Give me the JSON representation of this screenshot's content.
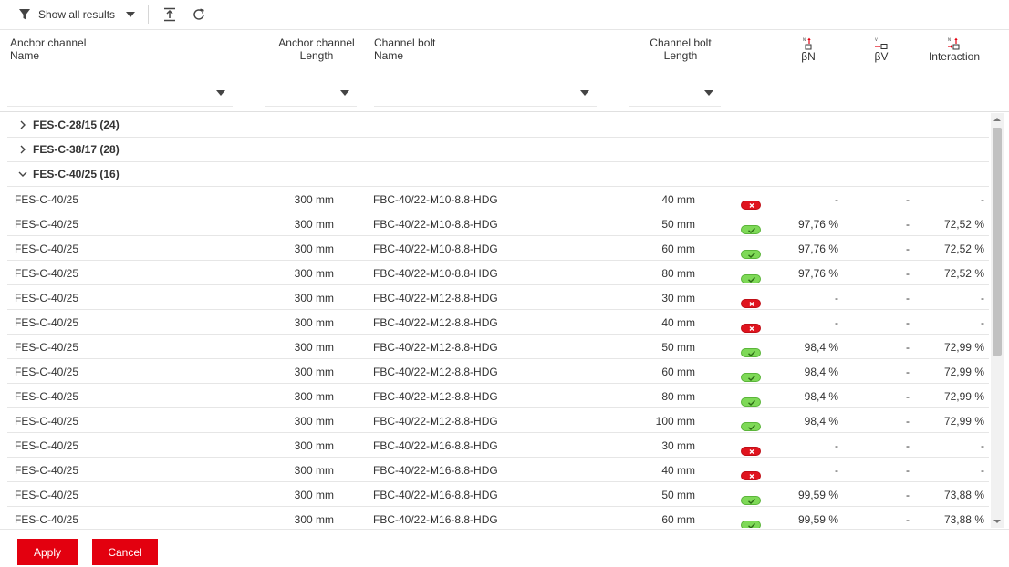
{
  "toolbar": {
    "filter_label": "Show all results",
    "icons": [
      "filter-icon",
      "chevron-down-icon",
      "collapse-up-icon",
      "refresh-icon"
    ]
  },
  "header": {
    "anchor_name": [
      "Anchor channel",
      "Name"
    ],
    "anchor_length": [
      "Anchor channel",
      "Length"
    ],
    "bolt_name": [
      "Channel bolt",
      "Name"
    ],
    "bolt_length": [
      "Channel bolt",
      "Length"
    ],
    "beta_n": "βN",
    "beta_v": "βV",
    "interaction": "Interaction"
  },
  "groups": [
    {
      "label": "FES-C-28/15 (24)",
      "expanded": false
    },
    {
      "label": "FES-C-38/17 (28)",
      "expanded": false
    },
    {
      "label": "FES-C-40/25 (16)",
      "expanded": true
    }
  ],
  "rows": [
    {
      "name": "FES-C-40/25",
      "length": "300 mm",
      "bolt": "FBC-40/22-M10-8.8-HDG",
      "blen": "40 mm",
      "status": "fail",
      "bn": "-",
      "bv": "-",
      "inter": "-"
    },
    {
      "name": "FES-C-40/25",
      "length": "300 mm",
      "bolt": "FBC-40/22-M10-8.8-HDG",
      "blen": "50 mm",
      "status": "ok",
      "bn": "97,76 %",
      "bv": "-",
      "inter": "72,52 %"
    },
    {
      "name": "FES-C-40/25",
      "length": "300 mm",
      "bolt": "FBC-40/22-M10-8.8-HDG",
      "blen": "60 mm",
      "status": "ok",
      "bn": "97,76 %",
      "bv": "-",
      "inter": "72,52 %"
    },
    {
      "name": "FES-C-40/25",
      "length": "300 mm",
      "bolt": "FBC-40/22-M10-8.8-HDG",
      "blen": "80 mm",
      "status": "ok",
      "bn": "97,76 %",
      "bv": "-",
      "inter": "72,52 %"
    },
    {
      "name": "FES-C-40/25",
      "length": "300 mm",
      "bolt": "FBC-40/22-M12-8.8-HDG",
      "blen": "30 mm",
      "status": "fail",
      "bn": "-",
      "bv": "-",
      "inter": "-"
    },
    {
      "name": "FES-C-40/25",
      "length": "300 mm",
      "bolt": "FBC-40/22-M12-8.8-HDG",
      "blen": "40 mm",
      "status": "fail",
      "bn": "-",
      "bv": "-",
      "inter": "-"
    },
    {
      "name": "FES-C-40/25",
      "length": "300 mm",
      "bolt": "FBC-40/22-M12-8.8-HDG",
      "blen": "50 mm",
      "status": "ok",
      "bn": "98,4 %",
      "bv": "-",
      "inter": "72,99 %"
    },
    {
      "name": "FES-C-40/25",
      "length": "300 mm",
      "bolt": "FBC-40/22-M12-8.8-HDG",
      "blen": "60 mm",
      "status": "ok",
      "bn": "98,4 %",
      "bv": "-",
      "inter": "72,99 %"
    },
    {
      "name": "FES-C-40/25",
      "length": "300 mm",
      "bolt": "FBC-40/22-M12-8.8-HDG",
      "blen": "80 mm",
      "status": "ok",
      "bn": "98,4 %",
      "bv": "-",
      "inter": "72,99 %"
    },
    {
      "name": "FES-C-40/25",
      "length": "300 mm",
      "bolt": "FBC-40/22-M12-8.8-HDG",
      "blen": "100 mm",
      "status": "ok",
      "bn": "98,4 %",
      "bv": "-",
      "inter": "72,99 %"
    },
    {
      "name": "FES-C-40/25",
      "length": "300 mm",
      "bolt": "FBC-40/22-M16-8.8-HDG",
      "blen": "30 mm",
      "status": "fail",
      "bn": "-",
      "bv": "-",
      "inter": "-"
    },
    {
      "name": "FES-C-40/25",
      "length": "300 mm",
      "bolt": "FBC-40/22-M16-8.8-HDG",
      "blen": "40 mm",
      "status": "fail",
      "bn": "-",
      "bv": "-",
      "inter": "-"
    },
    {
      "name": "FES-C-40/25",
      "length": "300 mm",
      "bolt": "FBC-40/22-M16-8.8-HDG",
      "blen": "50 mm",
      "status": "ok",
      "bn": "99,59 %",
      "bv": "-",
      "inter": "73,88 %"
    },
    {
      "name": "FES-C-40/25",
      "length": "300 mm",
      "bolt": "FBC-40/22-M16-8.8-HDG",
      "blen": "60 mm",
      "status": "ok",
      "bn": "99,59 %",
      "bv": "-",
      "inter": "73,88 %"
    }
  ],
  "footer": {
    "apply_label": "Apply",
    "cancel_label": "Cancel"
  },
  "colors": {
    "accent_red": "#e3000f",
    "ok_green": "#7ed957",
    "fail_red": "#e0141e"
  }
}
